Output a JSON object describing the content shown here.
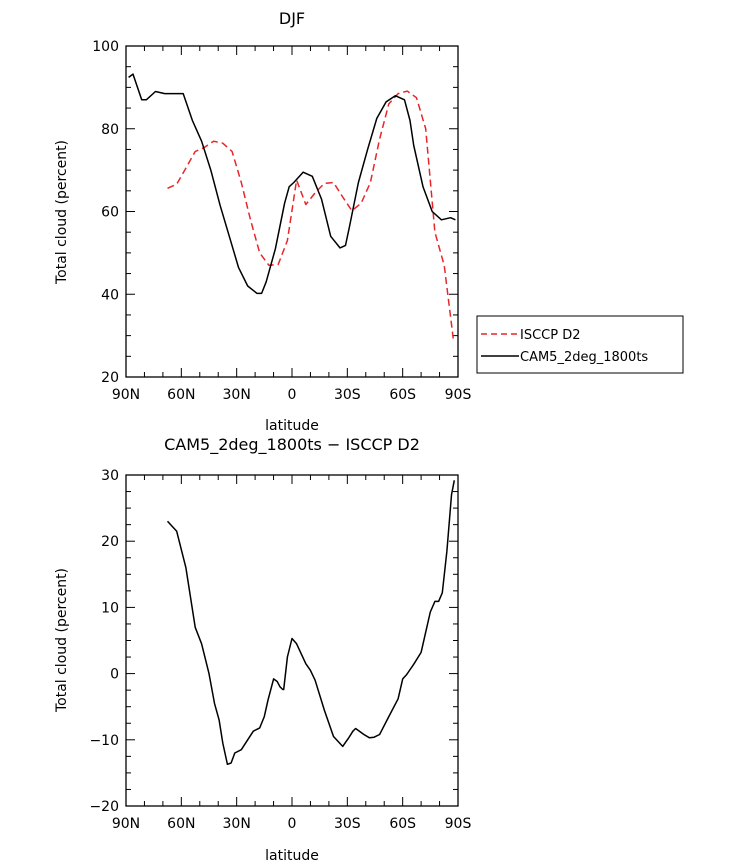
{
  "chart_data": [
    {
      "type": "line",
      "title": "DJF",
      "xlabel": "latitude",
      "ylabel": "Total cloud (percent)",
      "xlim": [
        90,
        -90
      ],
      "ylim": [
        20,
        100
      ],
      "x_tick_values": [
        90,
        60,
        30,
        0,
        -30,
        -60,
        -90
      ],
      "x_tick_labels": [
        "90N",
        "60N",
        "30N",
        "0",
        "30S",
        "60S",
        "90S"
      ],
      "y_tick_values": [
        20,
        40,
        60,
        80,
        100
      ],
      "y_tick_labels": [
        "20",
        "40",
        "60",
        "80",
        "100"
      ],
      "legend": {
        "placement": "right"
      },
      "series": [
        {
          "name": "ISCCP D2",
          "color": "#e8262a",
          "dash": "dashed",
          "x": [
            67.5,
            62.5,
            57.5,
            52.5,
            47.5,
            42.5,
            37.5,
            32.5,
            27.5,
            22.5,
            17.5,
            12.5,
            7.5,
            2.5,
            -2.5,
            -7.5,
            -12.5,
            -17.5,
            -22.5,
            -27.5,
            -32.5,
            -37.5,
            -42.5,
            -47.5,
            -52.5,
            -57.5,
            -62.5,
            -67.5,
            -72.5,
            -77.5,
            -82.5,
            -87.5
          ],
          "y": [
            65.6,
            66.6,
            70.5,
            74.5,
            75.5,
            77.0,
            76.5,
            74.5,
            67.0,
            58.0,
            50.0,
            47.0,
            47.2,
            53.0,
            67.6,
            61.7,
            64.5,
            66.8,
            67.0,
            63.5,
            60.2,
            62.0,
            67.0,
            77.5,
            86.0,
            88.5,
            89.1,
            87.5,
            80.0,
            55.0,
            47.0,
            29.0
          ]
        },
        {
          "name": "CAM5_2deg_1800ts",
          "color": "#000000",
          "dash": "solid",
          "x": [
            88.6,
            86.2,
            81.5,
            79,
            74,
            69,
            64,
            59,
            54,
            49,
            44,
            39,
            34,
            29,
            24,
            19,
            16.5,
            14,
            9,
            4,
            1.5,
            -1,
            -6,
            -11,
            -16,
            -21,
            -26,
            -29,
            -31,
            -36,
            -41,
            -46,
            -51,
            -56,
            -61,
            -64,
            -66,
            -71,
            -76,
            -81,
            -86,
            -88.6
          ],
          "y": [
            92.4,
            93.2,
            87.0,
            87.0,
            89.0,
            88.5,
            88.5,
            88.5,
            82.0,
            77.0,
            70.0,
            61.5,
            54.0,
            46.5,
            42.0,
            40.2,
            40.2,
            43.0,
            51.0,
            62.0,
            66.0,
            67.0,
            69.5,
            68.5,
            63.0,
            54.0,
            51.2,
            51.8,
            56.0,
            67.0,
            75.0,
            82.5,
            86.5,
            88.0,
            87.0,
            82.0,
            76.0,
            66.0,
            60.0,
            58.0,
            58.5,
            58.0
          ]
        }
      ]
    },
    {
      "type": "line",
      "title": "CAM5_2deg_1800ts − ISCCP D2",
      "xlabel": "latitude",
      "ylabel": "Total cloud (percent)",
      "xlim": [
        90,
        -90
      ],
      "ylim": [
        -20,
        30
      ],
      "x_tick_values": [
        90,
        60,
        30,
        0,
        -30,
        -60,
        -90
      ],
      "x_tick_labels": [
        "90N",
        "60N",
        "30N",
        "0",
        "30S",
        "60S",
        "90S"
      ],
      "y_tick_values": [
        -20,
        -10,
        0,
        10,
        20,
        30
      ],
      "y_tick_labels": [
        "−20",
        "−10",
        "0",
        "10",
        "20",
        "30"
      ],
      "series": [
        {
          "color": "#000000",
          "dash": "solid",
          "x": [
            67.5,
            62.5,
            57.5,
            52.5,
            49,
            45,
            42,
            39.5,
            37.5,
            35,
            33,
            31,
            27.5,
            24,
            21,
            17.5,
            15,
            13,
            10,
            8,
            6.5,
            5,
            4.5,
            2.5,
            0,
            -2.5,
            -4.5,
            -7.5,
            -10,
            -12.5,
            -17.5,
            -22.5,
            -27.5,
            -29.5,
            -30.5,
            -33,
            -34.5,
            -36,
            -39,
            -42,
            -44.5,
            -47.5,
            -52.5,
            -57.5,
            -60,
            -62,
            -63.5,
            -66,
            -70,
            -75,
            -77.5,
            -79.5,
            -81.5,
            -84,
            -86.5,
            -88
          ],
          "y": [
            23.0,
            21.5,
            16.0,
            7.0,
            4.5,
            0,
            -4.5,
            -7.0,
            -10.5,
            -13.7,
            -13.5,
            -12.0,
            -11.5,
            -10.0,
            -8.7,
            -8.2,
            -6.5,
            -4.0,
            -0.8,
            -1.2,
            -2.0,
            -2.4,
            -2.4,
            2.5,
            5.3,
            4.5,
            3.3,
            1.5,
            0.5,
            -1.0,
            -5.5,
            -9.5,
            -11.0,
            -10.2,
            -9.8,
            -8.7,
            -8.3,
            -8.6,
            -9.2,
            -9.7,
            -9.6,
            -9.2,
            -6.5,
            -3.8,
            -0.8,
            -0.2,
            0.4,
            1.4,
            3.2,
            9.3,
            10.9,
            10.9,
            12.2,
            18.5,
            27.0,
            29.2
          ]
        }
      ]
    }
  ]
}
